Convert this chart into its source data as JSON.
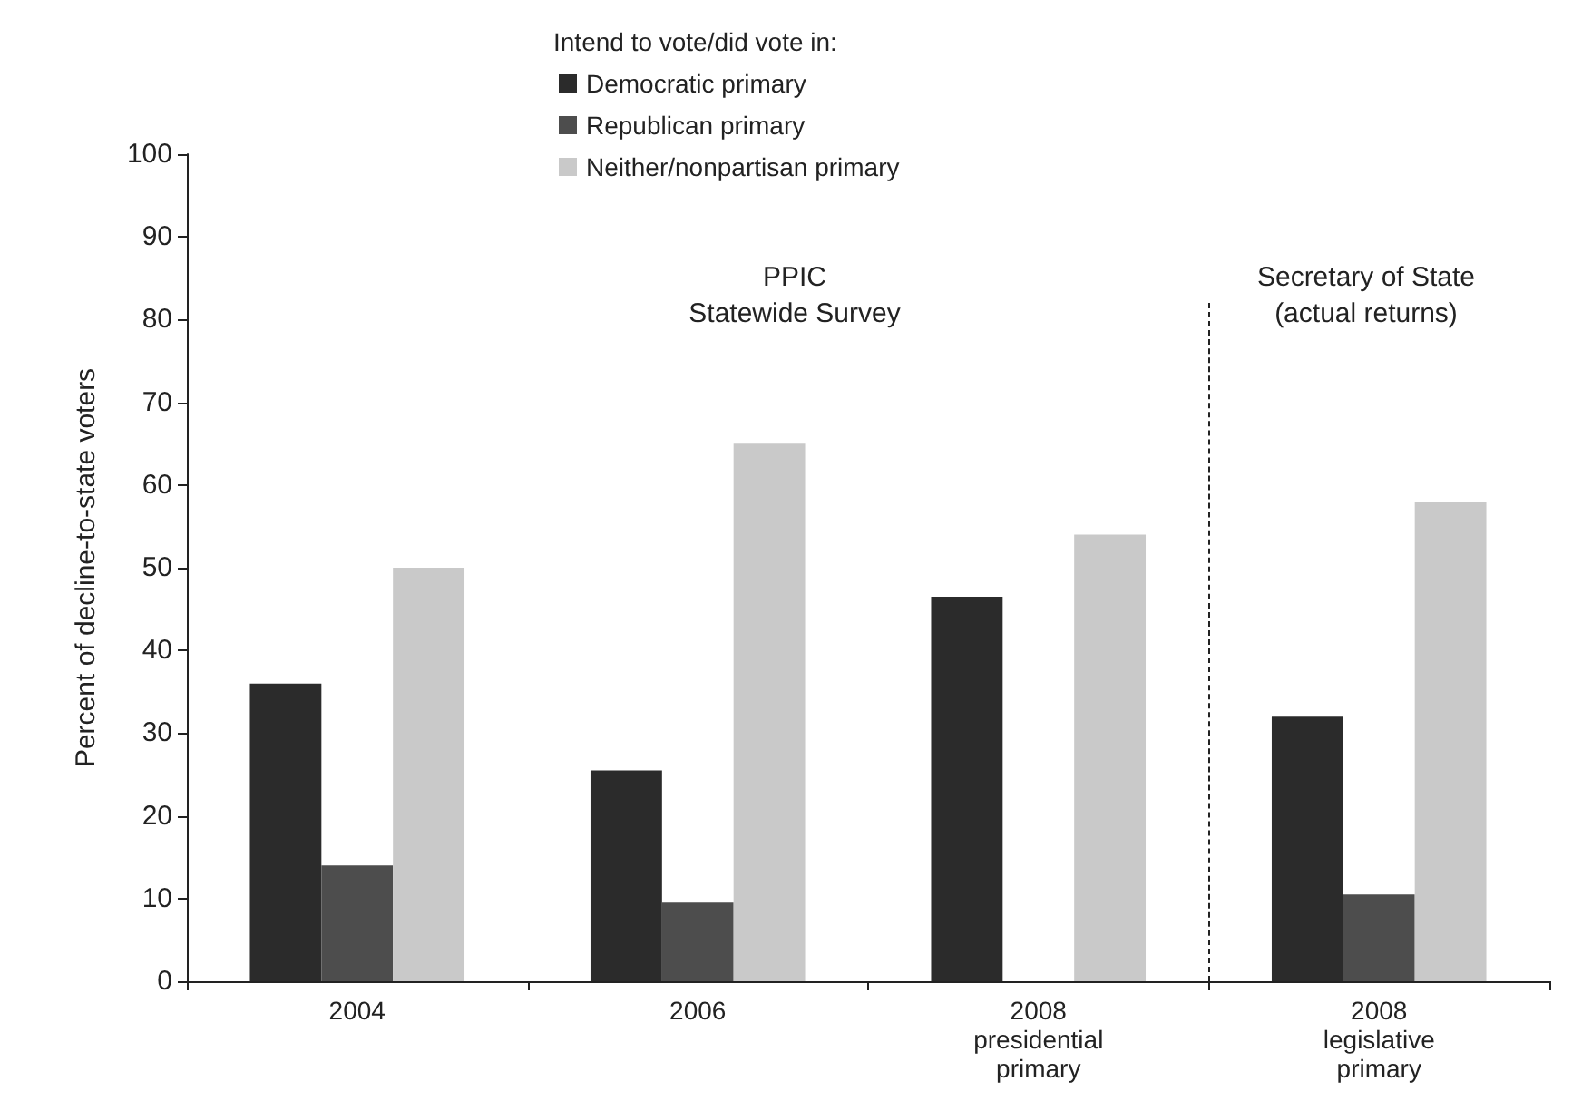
{
  "chart_data": {
    "type": "bar",
    "ylabel": "Percent of decline-to-state voters",
    "legend_title": "Intend to vote/did vote in:",
    "categories": [
      "2004",
      "2006",
      "2008\npresidential\nprimary",
      "2008\nlegislative\nprimary"
    ],
    "series": [
      {
        "name": "Democratic primary",
        "color": "#2b2b2b",
        "values": [
          36,
          25.5,
          46.5,
          32
        ]
      },
      {
        "name": "Republican primary",
        "color": "#4d4d4d",
        "values": [
          14,
          9.5,
          null,
          10.5
        ]
      },
      {
        "name": "Neither/nonpartisan primary",
        "color": "#c9c9c9",
        "values": [
          50,
          65,
          54,
          58
        ]
      }
    ],
    "ylim": [
      0,
      100
    ],
    "yticks": [
      0,
      10,
      20,
      30,
      40,
      50,
      60,
      70,
      80,
      90,
      100
    ],
    "grid": false,
    "legend": "top left",
    "annotations": [
      "PPIC\nStatewide Survey",
      "Secretary of State\n(actual returns)"
    ]
  }
}
